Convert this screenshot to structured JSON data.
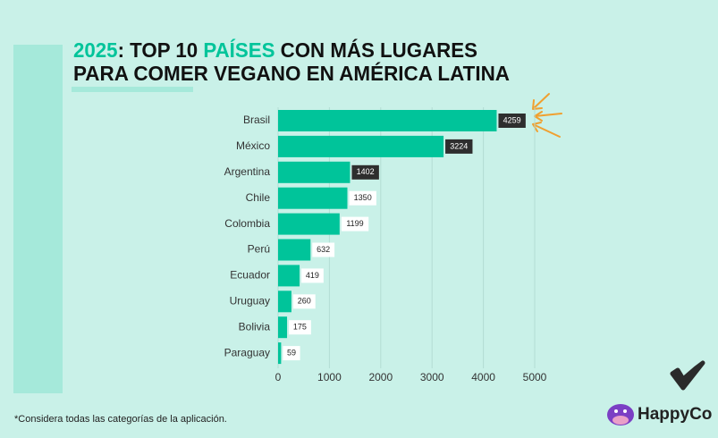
{
  "chart_data": {
    "type": "bar",
    "orientation": "horizontal",
    "title_parts": [
      {
        "text": "2025",
        "color": "#00c49a"
      },
      {
        "text": ": TOP 10 ",
        "color": "#111111"
      },
      {
        "text": "PAÍSES",
        "color": "#00c49a"
      },
      {
        "text": " CON MÁS LUGARES",
        "color": "#111111"
      }
    ],
    "title_line2": "PARA COMER VEGANO EN AMÉRICA LATINA",
    "categories": [
      "Brasil",
      "México",
      "Argentina",
      "Chile",
      "Colombia",
      "Perú",
      "Ecuador",
      "Uruguay",
      "Bolivia",
      "Paraguay"
    ],
    "values": [
      4259,
      3224,
      1402,
      1350,
      1199,
      632,
      419,
      260,
      175,
      59
    ],
    "color": "#00c49a",
    "xlim": [
      0,
      5000
    ],
    "xticks": [
      0,
      1000,
      2000,
      3000,
      4000,
      5000
    ],
    "grid": true,
    "footnote": "*Considera todas las categorías de la aplicación.",
    "logo": "HappyCo"
  }
}
